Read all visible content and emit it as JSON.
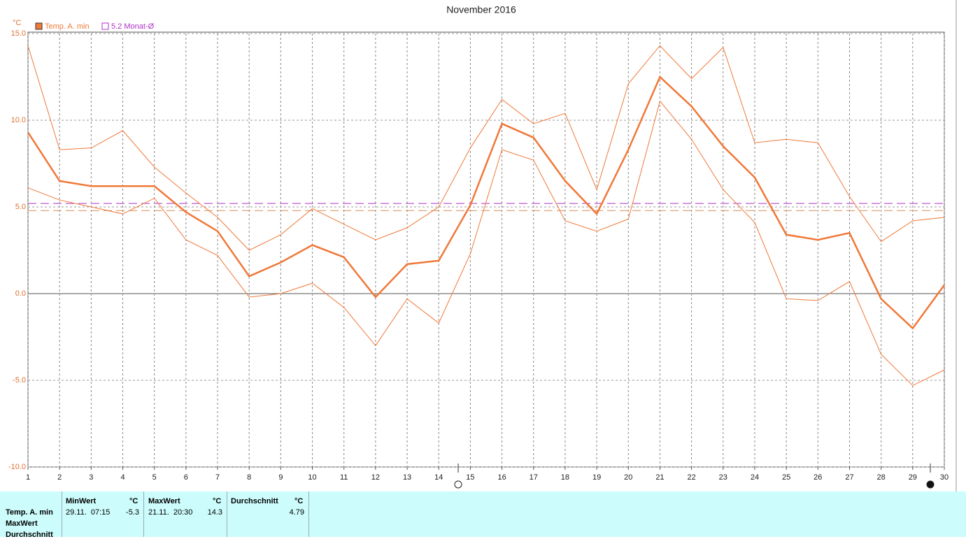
{
  "chart_data": {
    "type": "line",
    "title": "November 2016",
    "y_unit": "°C",
    "x": [
      1,
      2,
      3,
      4,
      5,
      6,
      7,
      8,
      9,
      10,
      11,
      12,
      13,
      14,
      15,
      16,
      17,
      18,
      19,
      20,
      21,
      22,
      23,
      24,
      25,
      26,
      27,
      28,
      29,
      30
    ],
    "xlim": [
      1,
      30
    ],
    "xticks": [
      1,
      2,
      3,
      4,
      5,
      6,
      7,
      8,
      9,
      10,
      11,
      12,
      13,
      14,
      15,
      16,
      17,
      18,
      19,
      20,
      21,
      22,
      23,
      24,
      25,
      26,
      27,
      28,
      29,
      30
    ],
    "ylim": [
      -10,
      15
    ],
    "yticks": [
      {
        "value": -10,
        "label": "-10.0"
      },
      {
        "value": -5,
        "label": "-5.0"
      },
      {
        "value": 0,
        "label": "0.0"
      },
      {
        "value": 5,
        "label": "5.0"
      },
      {
        "value": 10,
        "label": "10.0"
      },
      {
        "value": 15,
        "label": "15.0"
      }
    ],
    "grid": true,
    "series": [
      {
        "name": "Temp. A. min",
        "color": "#f07838",
        "values": [
          9.3,
          6.5,
          6.2,
          6.2,
          6.2,
          4.7,
          3.6,
          1.0,
          1.8,
          2.8,
          2.1,
          -0.2,
          1.7,
          1.9,
          5.1,
          9.8,
          9.0,
          6.5,
          4.6,
          8.3,
          12.5,
          10.8,
          8.5,
          6.7,
          3.4,
          3.1,
          3.5,
          -0.3,
          -2.0,
          0.5
        ],
        "high": [
          14.3,
          8.3,
          8.4,
          9.4,
          7.3,
          5.8,
          4.4,
          2.5,
          3.4,
          4.9,
          4.0,
          3.1,
          3.8,
          5.0,
          8.4,
          11.2,
          9.8,
          10.4,
          6.0,
          12.1,
          14.3,
          12.4,
          14.2,
          8.7,
          8.9,
          8.7,
          5.6,
          3.0,
          4.2,
          4.4
        ],
        "low": [
          6.1,
          5.4,
          5.0,
          4.6,
          5.5,
          3.1,
          2.2,
          -0.2,
          0.0,
          0.6,
          -0.8,
          -3.0,
          -0.3,
          -1.7,
          2.3,
          8.3,
          7.7,
          4.2,
          3.6,
          4.3,
          11.1,
          8.9,
          6.0,
          4.1,
          -0.3,
          -0.4,
          0.7,
          -3.5,
          -5.3,
          -4.4
        ]
      }
    ],
    "ref_lines": [
      {
        "label": "5.2 Monat-Ø",
        "value": 5.2,
        "color": "#b030c8"
      },
      {
        "value": 4.79,
        "color": "#d8905a"
      }
    ]
  },
  "table": {
    "headers": [
      "MinWert",
      "°C",
      "MaxWert",
      "°C",
      "Durchschnitt",
      "°C"
    ],
    "row_labels": [
      "Temp. A. min",
      "MaxWert",
      "Durchschnitt"
    ],
    "min_time": "29.11.  07:15",
    "min_value": "-5.3",
    "max_time": "21.11.  20:30",
    "max_value": "14.3",
    "avg_value": "4.79"
  }
}
